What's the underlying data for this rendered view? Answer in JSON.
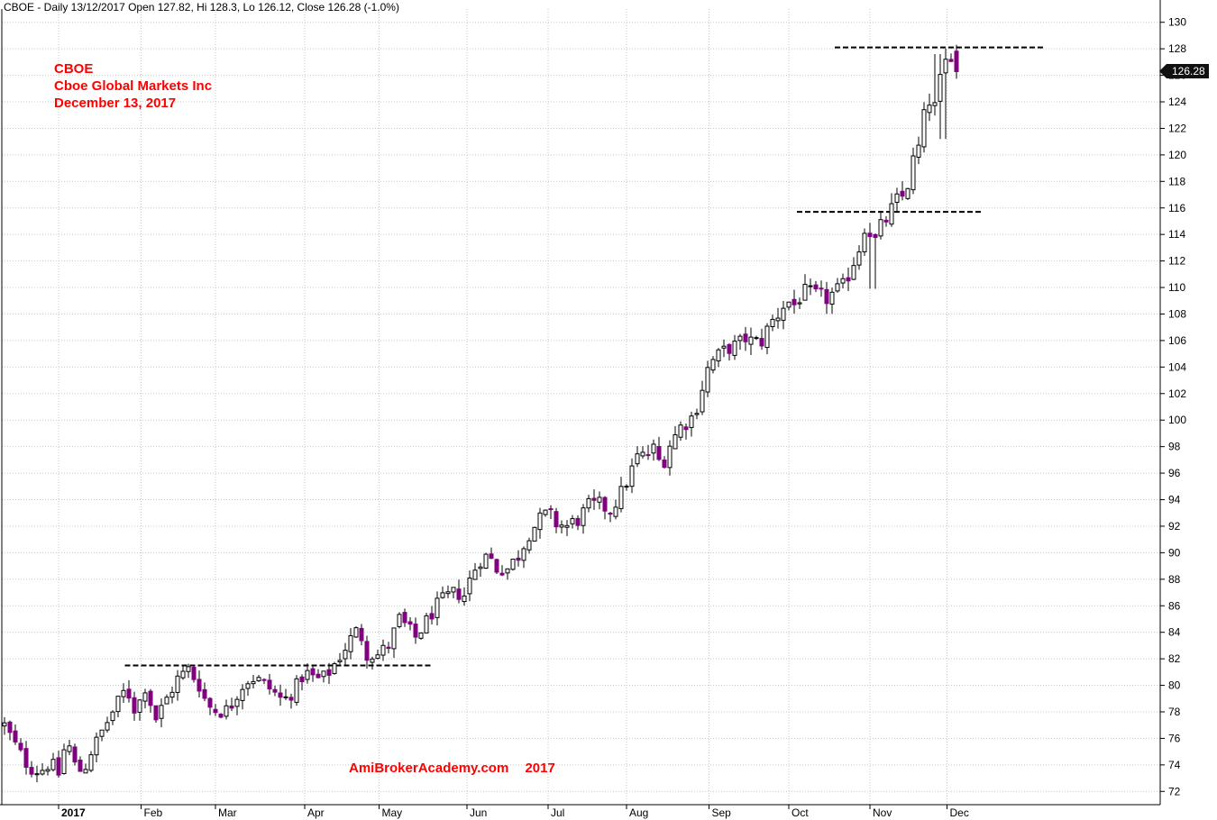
{
  "header": {
    "text": "CBOE - Daily 13/12/2017 Open 127.82, Hi 128.3, Lo 126.12, Close 126.28 (-1.0%)"
  },
  "annotation": {
    "ticker": "CBOE",
    "company": "Cboe Global Markets Inc",
    "date": "December 13, 2017"
  },
  "watermark": {
    "site": "AmiBrokerAcademy.com",
    "year": "2017"
  },
  "last_price_label": "126.28",
  "colors": {
    "up_body": "#ffffff",
    "down_body": "#800080",
    "candle_outline": "#000000",
    "annotation_text": "#ff0000",
    "grid": "#c8c8c8"
  },
  "chart_data": {
    "type": "candlestick",
    "title": "CBOE - Daily 13/12/2017",
    "ylim": [
      71,
      131
    ],
    "yticks": [
      72,
      74,
      76,
      78,
      80,
      82,
      84,
      86,
      88,
      90,
      92,
      94,
      96,
      98,
      100,
      102,
      104,
      106,
      108,
      110,
      112,
      114,
      116,
      118,
      120,
      122,
      124,
      126,
      128,
      130
    ],
    "grid": true,
    "axis_position": "right",
    "x_tick_labels": [
      {
        "label": "2017",
        "index": 40,
        "bold": true
      },
      {
        "label": "Feb",
        "index": 101
      },
      {
        "label": "Mar",
        "index": 156
      },
      {
        "label": "Apr",
        "index": 222
      },
      {
        "label": "May",
        "index": 277
      },
      {
        "label": "Jun",
        "index": 342
      },
      {
        "label": "Jul",
        "index": 402
      },
      {
        "label": "Aug",
        "index": 460
      },
      {
        "label": "Sep",
        "index": 521
      },
      {
        "label": "Oct",
        "index": 580
      },
      {
        "label": "Nov",
        "index": 640
      },
      {
        "label": "Dec",
        "index": 697
      }
    ],
    "anchors": [
      [
        0,
        77.0
      ],
      [
        8,
        75.5
      ],
      [
        18,
        73.8
      ],
      [
        26,
        73.5
      ],
      [
        34,
        74.2
      ],
      [
        40,
        73.3
      ],
      [
        46,
        76.0
      ],
      [
        52,
        74.0
      ],
      [
        58,
        73.4
      ],
      [
        64,
        75.0
      ],
      [
        72,
        76.5
      ],
      [
        80,
        78.0
      ],
      [
        90,
        79.8
      ],
      [
        97,
        78.0
      ],
      [
        104,
        79.9
      ],
      [
        112,
        77.5
      ],
      [
        120,
        79.0
      ],
      [
        128,
        80.5
      ],
      [
        136,
        81.2
      ],
      [
        144,
        80.0
      ],
      [
        150,
        78.5
      ],
      [
        158,
        78.0
      ],
      [
        166,
        78.2
      ],
      [
        174,
        79.8
      ],
      [
        182,
        80.6
      ],
      [
        190,
        80.3
      ],
      [
        198,
        79.6
      ],
      [
        206,
        78.8
      ],
      [
        214,
        79.6
      ],
      [
        222,
        81.0
      ],
      [
        228,
        80.6
      ],
      [
        234,
        80.4
      ],
      [
        240,
        81.0
      ],
      [
        248,
        82.2
      ],
      [
        256,
        83.5
      ],
      [
        262,
        84.3
      ],
      [
        268,
        82.4
      ],
      [
        276,
        82.3
      ],
      [
        284,
        83.0
      ],
      [
        292,
        85.0
      ],
      [
        298,
        84.3
      ],
      [
        304,
        83.6
      ],
      [
        310,
        84.5
      ],
      [
        318,
        85.8
      ],
      [
        326,
        86.6
      ],
      [
        334,
        87.0
      ],
      [
        340,
        86.8
      ],
      [
        346,
        88.5
      ],
      [
        352,
        89.5
      ],
      [
        358,
        89.8
      ],
      [
        364,
        88.8
      ],
      [
        372,
        88.8
      ],
      [
        380,
        89.8
      ],
      [
        388,
        91.5
      ],
      [
        396,
        92.5
      ],
      [
        402,
        93.0
      ],
      [
        408,
        92.2
      ],
      [
        416,
        92.0
      ],
      [
        424,
        92.5
      ],
      [
        432,
        93.5
      ],
      [
        440,
        93.6
      ],
      [
        448,
        93.2
      ],
      [
        456,
        94.5
      ],
      [
        462,
        95.8
      ],
      [
        468,
        97.2
      ],
      [
        474,
        97.3
      ],
      [
        480,
        97.8
      ],
      [
        486,
        96.5
      ],
      [
        492,
        98.2
      ],
      [
        500,
        99.5
      ],
      [
        508,
        100.2
      ],
      [
        514,
        101.5
      ],
      [
        518,
        103.5
      ],
      [
        524,
        104.5
      ],
      [
        530,
        105.0
      ],
      [
        536,
        105.5
      ],
      [
        542,
        105.6
      ],
      [
        548,
        106.2
      ],
      [
        554,
        105.8
      ],
      [
        560,
        106.0
      ],
      [
        566,
        107.2
      ],
      [
        572,
        108.0
      ],
      [
        578,
        109.0
      ],
      [
        584,
        108.7
      ],
      [
        590,
        109.6
      ],
      [
        596,
        109.5
      ],
      [
        602,
        109.3
      ],
      [
        608,
        109.2
      ],
      [
        614,
        109.6
      ],
      [
        620,
        110.0
      ],
      [
        626,
        111.5
      ],
      [
        632,
        113.0
      ],
      [
        638,
        115.5
      ],
      [
        642,
        113.0
      ],
      [
        648,
        114.5
      ],
      [
        654,
        115.5
      ],
      [
        660,
        116.5
      ],
      [
        666,
        117.0
      ],
      [
        672,
        119.5
      ],
      [
        678,
        121.0
      ],
      [
        682,
        124.5
      ],
      [
        688,
        123.5
      ],
      [
        694,
        126.5
      ],
      [
        700,
        127.8
      ],
      [
        704,
        126.4
      ]
    ],
    "n_days": 705,
    "last_bar": {
      "date": "13/12/2017",
      "open": 127.82,
      "high": 128.3,
      "low": 126.12,
      "close": 126.28,
      "change_pct": -1.0
    },
    "reference_lines": [
      {
        "y": 81.5,
        "from_index": 89,
        "to_index": 316,
        "style": "dashed"
      },
      {
        "y": 115.7,
        "from_index": 586,
        "to_index": 723,
        "style": "dashed"
      },
      {
        "y": 128.1,
        "from_index": 614,
        "to_index": 770,
        "style": "dashed"
      }
    ]
  }
}
